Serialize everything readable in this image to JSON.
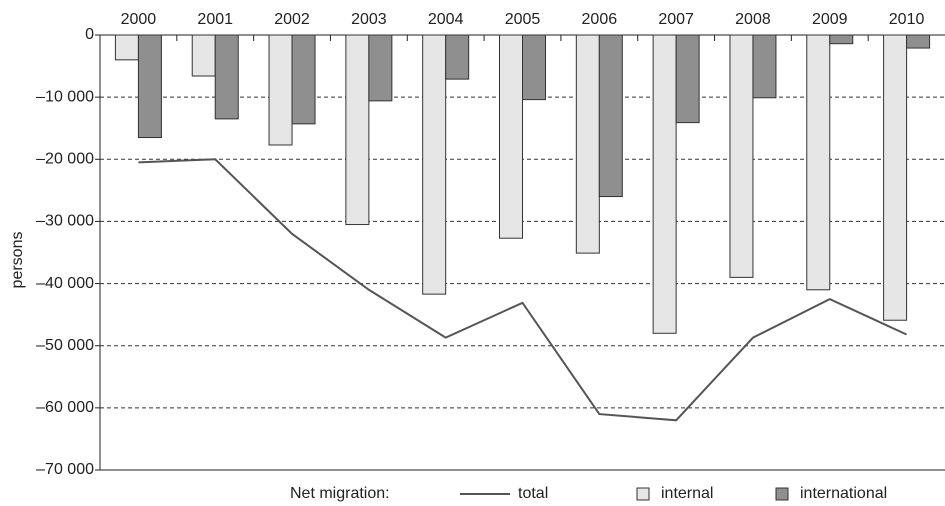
{
  "chart_data": {
    "type": "bar",
    "y_label": "persons",
    "legend_title": "Net migration:",
    "categories": [
      "2000",
      "2001",
      "2002",
      "2003",
      "2004",
      "2005",
      "2006",
      "2007",
      "2008",
      "2009",
      "2010"
    ],
    "series": [
      {
        "name": "internal",
        "type": "bar",
        "color": "#e6e6e6",
        "values": [
          -4000,
          -6600,
          -17700,
          -30500,
          -41700,
          -32700,
          -35100,
          -48000,
          -39000,
          -41000,
          -45900
        ]
      },
      {
        "name": "international",
        "type": "bar",
        "color": "#8f8f8f",
        "values": [
          -16500,
          -13500,
          -14300,
          -10600,
          -7100,
          -10400,
          -26000,
          -14100,
          -10100,
          -1400,
          -2100
        ]
      },
      {
        "name": "total",
        "type": "line",
        "color": "#555555",
        "values": [
          -20500,
          -20000,
          -32000,
          -41000,
          -48700,
          -43100,
          -61000,
          -62000,
          -48700,
          -42500,
          -48200
        ]
      }
    ],
    "ylim": [
      -70000,
      0
    ],
    "yticks": [
      0,
      {
        "value": -10000,
        "label": "–10 000"
      },
      {
        "value": -20000,
        "label": "–20 000"
      },
      {
        "value": -30000,
        "label": "–30 000"
      },
      {
        "value": -40000,
        "label": "–40 000"
      },
      {
        "value": -50000,
        "label": "–50 000"
      },
      {
        "value": -60000,
        "label": "–60 000"
      },
      {
        "value": -70000,
        "label": "–70 000"
      }
    ],
    "grid": true
  }
}
